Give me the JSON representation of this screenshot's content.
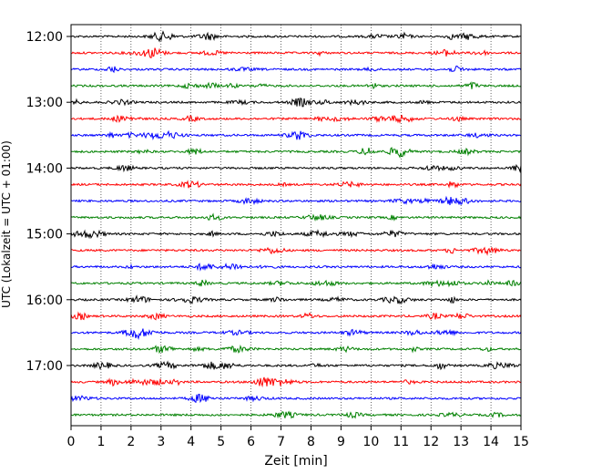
{
  "chart_data": {
    "type": "line",
    "title": "",
    "xlabel": "Zeit  [min]",
    "ylabel": "UTC (Lokalzeit = UTC + 01:00)",
    "xlim": [
      0,
      15
    ],
    "x_ticks": [
      "0",
      "1",
      "2",
      "3",
      "4",
      "5",
      "6",
      "7",
      "8",
      "9",
      "10",
      "11",
      "12",
      "13",
      "14",
      "15"
    ],
    "y_ticks": [
      "12:00",
      "13:00",
      "14:00",
      "15:00",
      "16:00",
      "17:00"
    ],
    "grid": "vertical dotted lines at each minute",
    "trace_interval_minutes": 15,
    "first_trace": "12:00",
    "trace_count": 24,
    "trace_colors": [
      "#000000",
      "#ff0000",
      "#0000ff",
      "#008000"
    ],
    "series_note": "seismogram helicorder: one horizontal trace per 15 minutes, colors cycle black, red, blue, green"
  }
}
